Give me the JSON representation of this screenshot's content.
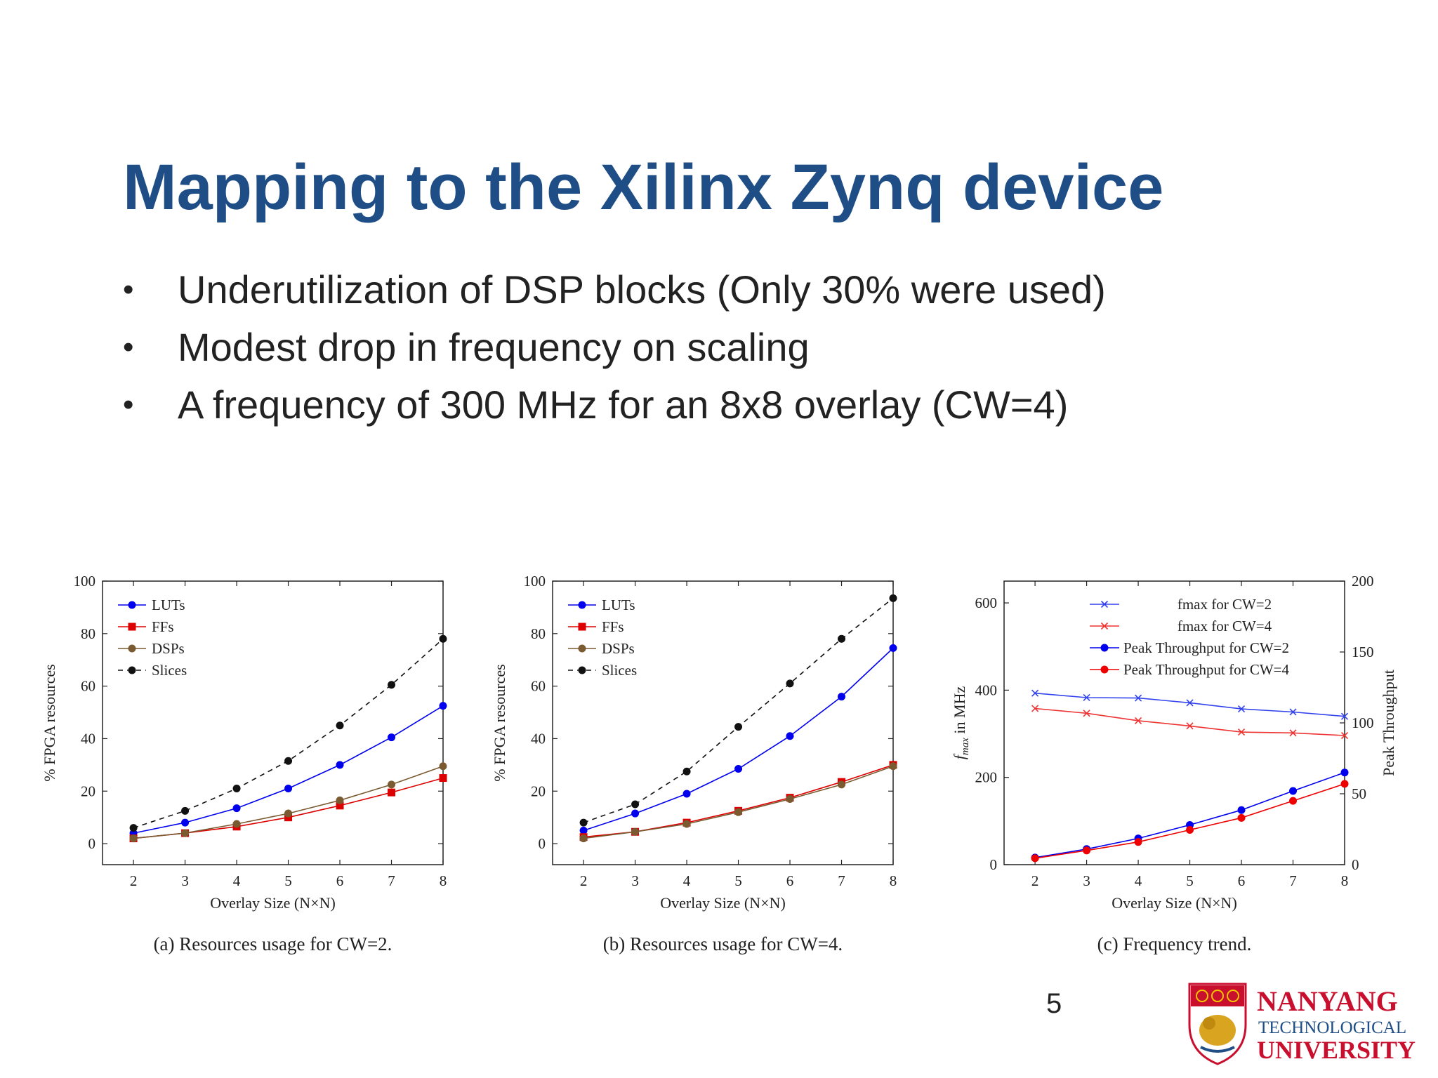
{
  "slide": {
    "title": "Mapping to the Xilinx Zynq device",
    "bullets": [
      "Underutilization of DSP blocks (Only 30% were used)",
      "Modest drop in frequency on scaling",
      "A frequency of 300 MHz for an 8x8 overlay (CW=4)"
    ],
    "bullet_glyph": "•",
    "page_number": "5"
  },
  "logo": {
    "line1": "NANYANG",
    "line2": "TECHNOLOGICAL",
    "line3": "UNIVERSITY",
    "color": "#c8102e"
  },
  "colors": {
    "title": "#1f4e86",
    "luts": "#0000ee",
    "ffs": "#dd0000",
    "dsps": "#7a5a30",
    "slices": "#111111",
    "fmax_cw2": "#3344ee",
    "fmax_cw4": "#ee3333",
    "tp_cw2": "#0000ee",
    "tp_cw4": "#ee0000"
  },
  "chart_data": [
    {
      "type": "line",
      "caption": "(a) Resources usage for CW=2.",
      "xlabel": "Overlay Size (N×N)",
      "ylabel": "% FPGA resources",
      "x": [
        2,
        3,
        4,
        5,
        6,
        7,
        8
      ],
      "xlim": [
        1.4,
        8
      ],
      "ylim": [
        -8,
        100
      ],
      "yticks": [
        0,
        20,
        40,
        60,
        80,
        100
      ],
      "legend_position": "top-left",
      "series": [
        {
          "name": "LUTs",
          "values": [
            4,
            8,
            13.5,
            21,
            30,
            40.5,
            52.5
          ],
          "color_key": "luts",
          "marker": "circle",
          "dash": false
        },
        {
          "name": "FFs",
          "values": [
            2,
            4,
            6.5,
            10,
            14.5,
            19.5,
            25
          ],
          "color_key": "ffs",
          "marker": "square",
          "dash": false
        },
        {
          "name": "DSPs",
          "values": [
            2,
            4,
            7.5,
            11.5,
            16.5,
            22.5,
            29.5
          ],
          "color_key": "dsps",
          "marker": "circle",
          "dash": false
        },
        {
          "name": "Slices",
          "values": [
            6,
            12.5,
            21,
            31.5,
            45,
            60.5,
            78
          ],
          "color_key": "slices",
          "marker": "circle",
          "dash": true
        }
      ]
    },
    {
      "type": "line",
      "caption": "(b) Resources usage for CW=4.",
      "xlabel": "Overlay Size (N×N)",
      "ylabel": "% FPGA resources",
      "x": [
        2,
        3,
        4,
        5,
        6,
        7,
        8
      ],
      "xlim": [
        1.4,
        8
      ],
      "ylim": [
        -8,
        100
      ],
      "yticks": [
        0,
        20,
        40,
        60,
        80,
        100
      ],
      "legend_position": "top-left",
      "series": [
        {
          "name": "LUTs",
          "values": [
            5,
            11.5,
            19,
            28.5,
            41,
            56,
            74.5
          ],
          "color_key": "luts",
          "marker": "circle",
          "dash": false
        },
        {
          "name": "FFs",
          "values": [
            2.5,
            4.5,
            8,
            12.5,
            17.5,
            23.5,
            30
          ],
          "color_key": "ffs",
          "marker": "square",
          "dash": false
        },
        {
          "name": "DSPs",
          "values": [
            2,
            4.5,
            7.5,
            12,
            17,
            22.5,
            29.5
          ],
          "color_key": "dsps",
          "marker": "circle",
          "dash": false
        },
        {
          "name": "Slices",
          "values": [
            8,
            15,
            27.5,
            44.5,
            61,
            78,
            93.5
          ],
          "color_key": "slices",
          "marker": "circle",
          "dash": true
        }
      ]
    },
    {
      "type": "line",
      "caption": "(c) Frequency trend.",
      "xlabel": "Overlay Size (N×N)",
      "ylabel": "f_max in MHz",
      "ylabel_right": "Peak Throughput",
      "x": [
        2,
        3,
        4,
        5,
        6,
        7,
        8
      ],
      "xlim": [
        1.4,
        8
      ],
      "ylim": [
        0,
        650
      ],
      "yticks": [
        0,
        200,
        400,
        600
      ],
      "ylim_right": [
        0,
        200
      ],
      "yticks_right": [
        0,
        50,
        100,
        150,
        200
      ],
      "legend_position": "top-right",
      "series": [
        {
          "name": "fmax for CW=2",
          "values": [
            393,
            383,
            382,
            371,
            357,
            350,
            340
          ],
          "axis": "left",
          "color_key": "fmax_cw2",
          "marker": "x",
          "dash": false
        },
        {
          "name": "fmax for CW=4",
          "values": [
            358,
            347,
            330,
            318,
            304,
            302,
            296
          ],
          "axis": "left",
          "color_key": "fmax_cw4",
          "marker": "x",
          "dash": false
        },
        {
          "name": "Peak Throughput for CW=2",
          "values": [
            5,
            11,
            18.5,
            28,
            38.5,
            52,
            65
          ],
          "axis": "right",
          "color_key": "tp_cw2",
          "marker": "circle",
          "dash": false
        },
        {
          "name": "Peak Throughput for CW=4",
          "values": [
            4.5,
            10,
            16,
            24.5,
            33,
            45,
            57
          ],
          "axis": "right",
          "color_key": "tp_cw4",
          "marker": "circle",
          "dash": false
        }
      ]
    }
  ]
}
